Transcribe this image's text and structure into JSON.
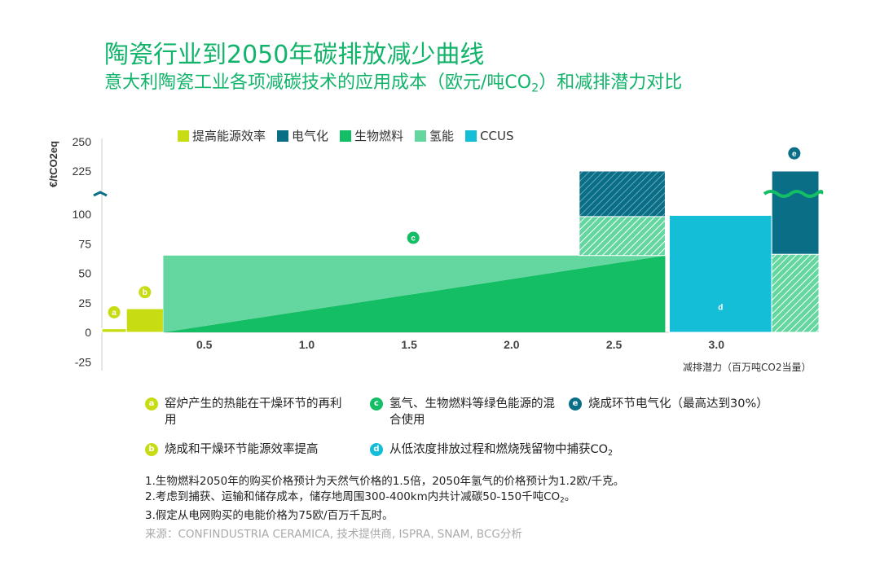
{
  "title": "陶瓷行业到2050年碳排放减少曲线",
  "subtitle": {
    "before": "意大利陶瓷工业各项减碳技术的应用成本（欧元/吨CO",
    "sub": "2",
    "after": "）和减排潜力对比"
  },
  "legend": [
    {
      "label": "提高能源效率",
      "color": "#c8dc14"
    },
    {
      "label": "电气化",
      "color": "#0a6e87"
    },
    {
      "label": "生物燃料",
      "color": "#14be64"
    },
    {
      "label": "氢能",
      "color": "#64d7a0"
    },
    {
      "label": "CCUS",
      "color": "#14bed7"
    }
  ],
  "chart_data": {
    "type": "bar",
    "subtype": "marginal-abatement-cost-curve",
    "ylabel": "€/tCO2eq",
    "xlabel": "减排潜力（百万吨CO2当量）",
    "y_ticks": [
      "250",
      "225",
      "100",
      "75",
      "50",
      "25",
      "0",
      "-25"
    ],
    "x_ticks": [
      "0.5",
      "1.0",
      "1.5",
      "2.0",
      "2.5",
      "3.0"
    ],
    "x_range": [
      0,
      3.5
    ],
    "y_range": [
      -25,
      250
    ],
    "y_axis_break": "between 100 and 225",
    "series": [
      {
        "name": "a",
        "category": "提高能源效率",
        "x_start": 0.0,
        "x_end": 0.12,
        "value": 3
      },
      {
        "name": "b",
        "category": "提高能源效率",
        "x_start": 0.12,
        "x_end": 0.3,
        "value": 20
      },
      {
        "name": "c-biofuel",
        "category": "生物燃料",
        "x_start": 0.3,
        "x_end": 2.75,
        "value": 65,
        "shape": "triangle-under-diagonal"
      },
      {
        "name": "c-hydrogen",
        "category": "氢能",
        "x_start": 0.3,
        "x_end": 2.75,
        "value": 65,
        "shape": "triangle-over-diagonal"
      },
      {
        "name": "c-hydrogen-hatched",
        "category": "氢能",
        "x_start": 2.33,
        "x_end": 2.75,
        "value_from": 65,
        "value_to": 98,
        "pattern": "hatched"
      },
      {
        "name": "c-electric-hatched",
        "category": "电气化",
        "x_start": 2.33,
        "x_end": 2.75,
        "value_from": 98,
        "value_to": 225,
        "pattern": "hatched"
      },
      {
        "name": "d",
        "category": "CCUS",
        "x_start": 2.77,
        "x_end": 3.27,
        "value": 99
      },
      {
        "name": "e-electric",
        "category": "电气化",
        "x_start": 3.27,
        "x_end": 3.5,
        "value_from": 66,
        "value_to": 225
      },
      {
        "name": "e-hydrogen-hatched",
        "category": "氢能",
        "x_start": 3.27,
        "x_end": 3.5,
        "value_from": 0,
        "value_to": 66,
        "pattern": "hatched"
      }
    ],
    "markers": [
      {
        "letter": "a",
        "x": 0.06,
        "y": 17,
        "color": "#c8dc14"
      },
      {
        "letter": "b",
        "x": 0.21,
        "y": 34,
        "color": "#c8dc14"
      },
      {
        "letter": "c",
        "x": 1.52,
        "y": 80,
        "color": "#14be64"
      },
      {
        "letter": "d",
        "x": 3.02,
        "y": 110,
        "color": "#14bed7"
      },
      {
        "letter": "e",
        "x": 3.38,
        "y": 240,
        "color": "#0a6e87"
      }
    ]
  },
  "notes": [
    {
      "letter": "a",
      "text": "窑炉产生的热能在干燥环节的再利用",
      "color": "#c8dc14"
    },
    {
      "letter": "c",
      "text": "氢气、生物燃料等绿色能源的混合使用",
      "color": "#14be64"
    },
    {
      "letter": "e",
      "text": "烧成环节电气化（最高达到30%）",
      "color": "#0a6e87"
    },
    {
      "letter": "b",
      "text": "烧成和干燥环节能源效率提高",
      "color": "#c8dc14"
    },
    {
      "letter": "d",
      "text": "从低浓度排放过程和燃烧残留物中捕获CO",
      "sub": "2",
      "color": "#14bed7"
    }
  ],
  "footnotes": {
    "f1": "1.生物燃料2050年的购买价格预计为天然气价格的1.5倍，2050年氢气的价格预计为1.2欧/千克。",
    "f2_before": "2.考虑到捕获、运输和储存成本，储存地周围300-400km内共计减碳50-150千吨CO",
    "f2_sub": "2",
    "f2_after": "。",
    "f3": "3.假定从电网购买的电能价格为75欧/百万千瓦时。"
  },
  "source": "来源：CONFINDUSTRIA CERAMICA, 技术提供商, ISPRA, SNAM, BCG分析"
}
